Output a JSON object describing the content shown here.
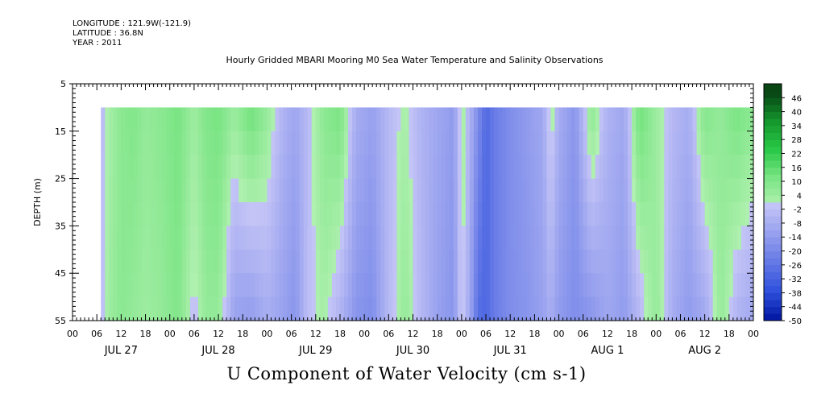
{
  "header": {
    "longitude": "LONGITUDE : 121.9W(-121.9)",
    "latitude": "LATITUDE : 36.8N",
    "year": "YEAR : 2011"
  },
  "chart_data": {
    "type": "heatmap",
    "title": "Hourly Gridded MBARI Mooring M0 Sea Water Temperature and Salinity Observations",
    "xlabel": "U Component of Water Velocity (cm s-1)",
    "ylabel": "DEPTH (m)",
    "y_axis": {
      "ylim": [
        55,
        5
      ],
      "ticks": [
        5,
        15,
        25,
        35,
        45,
        55
      ],
      "inverted": true,
      "minor_step": 1
    },
    "x_axis": {
      "hour_ticks": [
        "00",
        "06",
        "12",
        "18",
        "00",
        "06",
        "12",
        "18",
        "00",
        "06",
        "12",
        "18",
        "00",
        "06",
        "12",
        "18",
        "00",
        "06",
        "12",
        "18",
        "00",
        "06",
        "12",
        "18",
        "00",
        "06",
        "12",
        "18",
        "00"
      ],
      "day_labels": [
        "JUL 27",
        "JUL 28",
        "JUL 29",
        "JUL 30",
        "JUL 31",
        "AUG  1",
        "AUG  2"
      ],
      "range_days": 7,
      "data_start_hour": 7,
      "data_end_hour": 168
    },
    "data_depth_range": [
      10,
      55
    ],
    "colorbar": {
      "labels": [
        "46",
        "40",
        "34",
        "28",
        "22",
        "16",
        "10",
        "4",
        "-2",
        "-8",
        "-14",
        "-20",
        "-26",
        "-32",
        "-38",
        "-44",
        "-50"
      ],
      "min": -50,
      "max": 52,
      "step": 3
    },
    "column_profile_cm_s": {
      "hours": [
        7,
        9,
        12,
        15,
        18,
        22,
        26,
        30,
        33,
        36,
        40,
        44,
        48,
        52,
        55,
        58,
        62,
        66,
        70,
        74,
        78,
        82,
        86,
        90,
        94,
        96,
        98,
        100,
        102,
        104,
        108,
        112,
        116,
        118,
        120,
        124,
        128,
        132,
        136,
        140,
        144,
        148,
        152,
        156,
        160,
        164,
        168
      ],
      "surface": [
        -4,
        2,
        8,
        10,
        6,
        8,
        12,
        4,
        10,
        12,
        5,
        14,
        6,
        -6,
        -10,
        -4,
        8,
        12,
        -8,
        -12,
        -4,
        2,
        -6,
        -10,
        -14,
        4,
        -6,
        -18,
        -30,
        -24,
        -18,
        -14,
        -10,
        4,
        -8,
        -16,
        8,
        -6,
        -10,
        14,
        4,
        -4,
        -8,
        10,
        6,
        12,
        8
      ],
      "deep": [
        -3,
        4,
        8,
        6,
        4,
        6,
        10,
        -2,
        6,
        6,
        -12,
        -14,
        -8,
        -12,
        -16,
        -2,
        2,
        -6,
        -16,
        -18,
        -4,
        6,
        -4,
        -12,
        -16,
        2,
        -10,
        -28,
        -30,
        -24,
        -18,
        -16,
        -12,
        -8,
        -14,
        -18,
        -16,
        -10,
        -14,
        -4,
        6,
        -8,
        -14,
        -10,
        6,
        -6,
        -10
      ]
    }
  }
}
